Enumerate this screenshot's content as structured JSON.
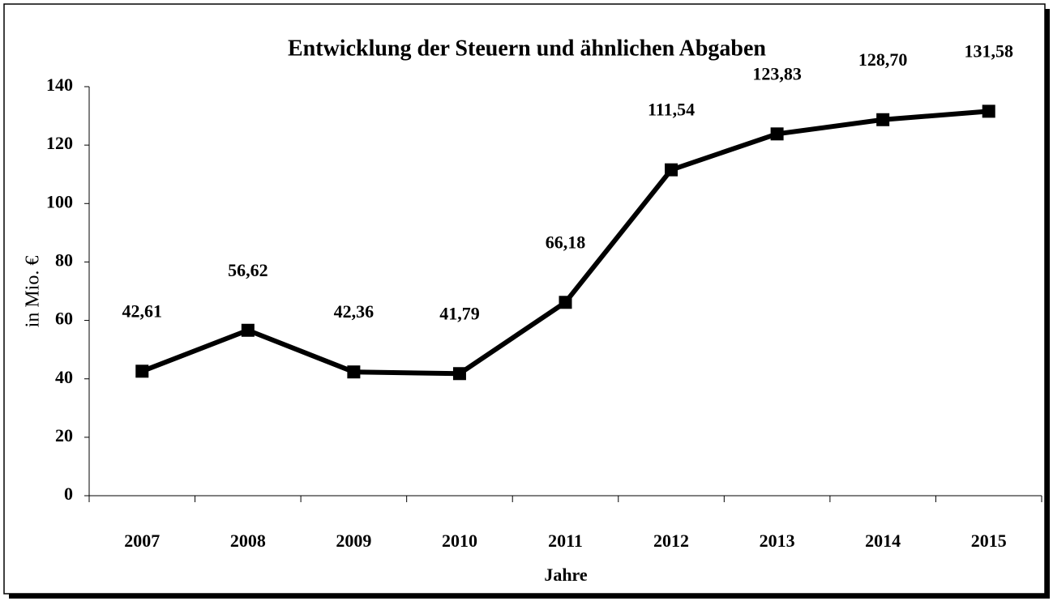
{
  "chart_data": {
    "type": "line",
    "title": "Entwicklung der Steuern und ähnlichen Abgaben",
    "x_label": "Jahre",
    "y_label": "in Mio. €",
    "categories": [
      "2007",
      "2008",
      "2009",
      "2010",
      "2011",
      "2012",
      "2013",
      "2014",
      "2015"
    ],
    "values": [
      42.61,
      56.62,
      42.36,
      41.79,
      66.18,
      111.54,
      123.83,
      128.7,
      131.58
    ],
    "value_labels": [
      "42,61",
      "56,62",
      "42,36",
      "41,79",
      "66,18",
      "111,54",
      "123,83",
      "128,70",
      "131,58"
    ],
    "color": "#000000",
    "ylim": [
      0,
      140
    ],
    "yticks": [
      0,
      20,
      40,
      60,
      80,
      100,
      120,
      140
    ]
  }
}
